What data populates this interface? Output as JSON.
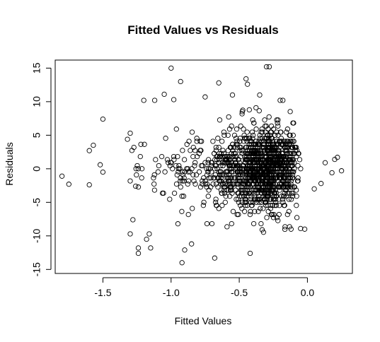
{
  "chart_data": {
    "type": "scatter",
    "title": "Fitted Values vs Residuals",
    "xlabel": "Fitted Values",
    "ylabel": "Residuals",
    "xlim": [
      -1.85,
      0.33
    ],
    "ylim": [
      -15.6,
      16.2
    ],
    "xticks": [
      -1.5,
      -1.0,
      -0.5,
      0.0
    ],
    "xtick_labels": [
      "-1.5",
      "-1.0",
      "-0.5",
      "0.0"
    ],
    "yticks": [
      -15,
      -10,
      -5,
      0,
      5,
      10,
      15
    ],
    "ytick_labels": [
      "-15",
      "-10",
      "-5",
      "0",
      "5",
      "10",
      "15"
    ],
    "grid": false,
    "legend": "none",
    "marker": "open-circle",
    "color": "#000000",
    "outliers": [
      [
        -1.8,
        -1.1
      ],
      [
        -1.75,
        -2.3
      ],
      [
        -1.6,
        -2.4
      ],
      [
        -1.6,
        2.7
      ],
      [
        -1.57,
        3.5
      ],
      [
        -1.52,
        0.6
      ],
      [
        -1.5,
        -0.5
      ],
      [
        -1.5,
        7.4
      ],
      [
        -1.32,
        4.4
      ],
      [
        -1.3,
        5.3
      ],
      [
        -1.3,
        -9.7
      ],
      [
        -1.28,
        -7.6
      ],
      [
        -1.26,
        -2.6
      ],
      [
        -1.24,
        -12.6
      ],
      [
        -1.24,
        -11.8
      ],
      [
        -1.2,
        10.2
      ],
      [
        -1.18,
        -10.5
      ],
      [
        -1.16,
        -9.7
      ],
      [
        -1.15,
        -11.8
      ],
      [
        -1.12,
        10.2
      ],
      [
        -1.05,
        11.1
      ],
      [
        -1.0,
        15.0
      ],
      [
        -0.98,
        10.3
      ],
      [
        -0.95,
        -8.2
      ],
      [
        -0.93,
        13.0
      ],
      [
        -0.92,
        -14.0
      ],
      [
        -0.9,
        -12.1
      ],
      [
        -0.85,
        -11.2
      ],
      [
        -0.75,
        10.7
      ],
      [
        -0.68,
        -13.3
      ],
      [
        -0.65,
        12.8
      ],
      [
        -0.55,
        11.0
      ],
      [
        -0.45,
        13.4
      ],
      [
        -0.44,
        12.6
      ],
      [
        -0.42,
        -12.6
      ],
      [
        -0.35,
        11.0
      ],
      [
        -0.3,
        15.2
      ],
      [
        -0.28,
        15.2
      ],
      [
        -0.2,
        10.2
      ],
      [
        -0.18,
        10.2
      ],
      [
        -0.12,
        -9.0
      ],
      [
        -0.05,
        -8.9
      ],
      [
        -0.02,
        -9.0
      ],
      [
        0.05,
        -3.0
      ],
      [
        0.1,
        -2.2
      ],
      [
        0.13,
        0.9
      ],
      [
        0.18,
        -0.6
      ],
      [
        0.2,
        1.4
      ],
      [
        0.22,
        1.7
      ],
      [
        0.25,
        -0.3
      ]
    ],
    "bulk": {
      "n": 1400,
      "center_x": -0.22,
      "x_spread": 0.2,
      "y_sd": 2.8,
      "x_min": -1.3,
      "x_max": 0.24
    }
  }
}
